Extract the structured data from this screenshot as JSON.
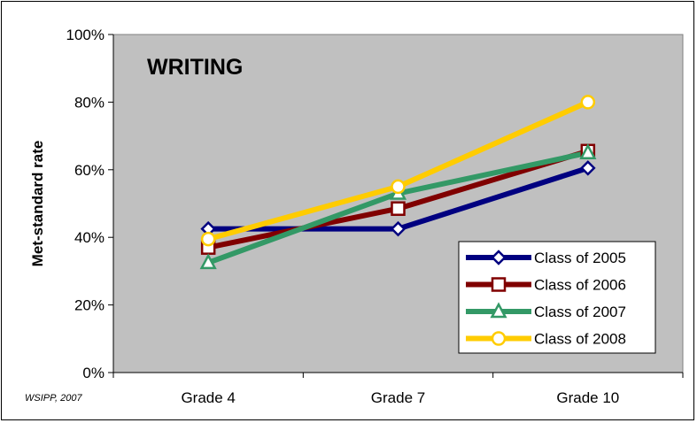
{
  "chart_data": {
    "type": "line",
    "title": "WRITING",
    "xlabel": "",
    "ylabel": "Met-standard rate",
    "categories": [
      "Grade 4",
      "Grade 7",
      "Grade 10"
    ],
    "ylim": [
      0,
      100
    ],
    "yticks": [
      "0%",
      "20%",
      "40%",
      "60%",
      "80%",
      "100%"
    ],
    "grid": false,
    "legend_position": "bottom-right",
    "plot_background": "#c0c0c0",
    "series": [
      {
        "name": "Class of 2005",
        "values": [
          42.5,
          42.5,
          60.5
        ],
        "color": "#000080",
        "marker": "diamond"
      },
      {
        "name": "Class of 2006",
        "values": [
          37,
          48.5,
          65.5
        ],
        "color": "#800000",
        "marker": "square"
      },
      {
        "name": "Class of 2007",
        "values": [
          32.5,
          53,
          65
        ],
        "color": "#339966",
        "marker": "triangle"
      },
      {
        "name": "Class of 2008",
        "values": [
          39.5,
          55,
          80
        ],
        "color": "#ffcc00",
        "marker": "circle"
      }
    ]
  },
  "source_note": "WSIPP, 2007"
}
